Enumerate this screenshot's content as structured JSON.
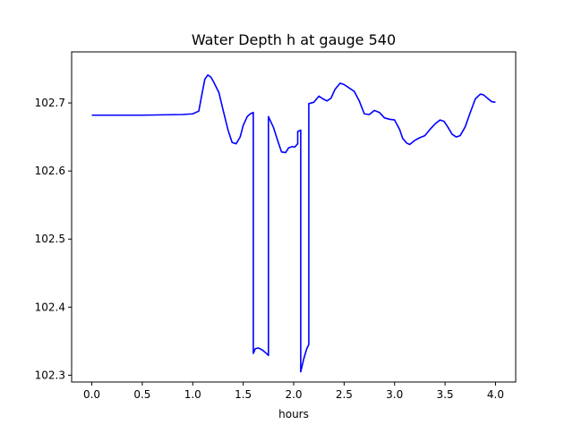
{
  "chart_data": {
    "type": "line",
    "title": "Water Depth h at gauge 540",
    "xlabel": "hours",
    "ylabel": "",
    "xlim": [
      -0.2,
      4.2
    ],
    "ylim": [
      102.29,
      102.775
    ],
    "xticks": [
      0.0,
      0.5,
      1.0,
      1.5,
      2.0,
      2.5,
      3.0,
      3.5,
      4.0
    ],
    "xtick_labels": [
      "0.0",
      "0.5",
      "1.0",
      "1.5",
      "2.0",
      "2.5",
      "3.0",
      "3.5",
      "4.0"
    ],
    "yticks": [
      102.3,
      102.4,
      102.5,
      102.6,
      102.7
    ],
    "ytick_labels": [
      "102.3",
      "102.4",
      "102.5",
      "102.6",
      "102.7"
    ],
    "grid": false,
    "legend": "none",
    "series": [
      {
        "color": "#0000ff",
        "x": [
          0.0,
          0.5,
          0.9,
          1.0,
          1.06,
          1.09,
          1.12,
          1.15,
          1.18,
          1.21,
          1.26,
          1.3,
          1.35,
          1.39,
          1.43,
          1.47,
          1.5,
          1.54,
          1.57,
          1.6,
          1.6,
          1.62,
          1.65,
          1.69,
          1.73,
          1.75,
          1.75,
          1.8,
          1.85,
          1.88,
          1.92,
          1.95,
          1.99,
          2.01,
          2.04,
          2.04,
          2.07,
          2.07,
          2.1,
          2.13,
          2.15,
          2.15,
          2.2,
          2.25,
          2.29,
          2.33,
          2.37,
          2.41,
          2.46,
          2.5,
          2.55,
          2.6,
          2.65,
          2.7,
          2.75,
          2.8,
          2.85,
          2.9,
          2.95,
          3.0,
          3.05,
          3.08,
          3.12,
          3.15,
          3.2,
          3.25,
          3.3,
          3.35,
          3.4,
          3.45,
          3.49,
          3.53,
          3.57,
          3.61,
          3.65,
          3.7,
          3.75,
          3.8,
          3.85,
          3.88,
          3.92,
          3.96,
          4.0
        ],
        "y": [
          102.682,
          102.682,
          102.683,
          102.684,
          102.688,
          102.712,
          102.735,
          102.741,
          102.738,
          102.73,
          102.715,
          102.69,
          102.66,
          102.642,
          102.64,
          102.65,
          102.667,
          102.68,
          102.684,
          102.686,
          102.332,
          102.339,
          102.34,
          102.337,
          102.332,
          102.329,
          102.68,
          102.664,
          102.641,
          102.628,
          102.627,
          102.634,
          102.636,
          102.635,
          102.64,
          102.658,
          102.66,
          102.305,
          102.324,
          102.339,
          102.345,
          102.699,
          102.701,
          102.71,
          102.706,
          102.703,
          102.707,
          102.72,
          102.729,
          102.727,
          102.722,
          102.717,
          102.703,
          102.684,
          102.683,
          102.689,
          102.686,
          102.678,
          102.676,
          102.675,
          102.661,
          102.648,
          102.641,
          102.639,
          102.645,
          102.649,
          102.652,
          102.661,
          102.669,
          102.675,
          102.673,
          102.664,
          102.654,
          102.65,
          102.652,
          102.665,
          102.686,
          102.706,
          102.713,
          102.712,
          102.707,
          102.702,
          102.701
        ]
      }
    ]
  }
}
